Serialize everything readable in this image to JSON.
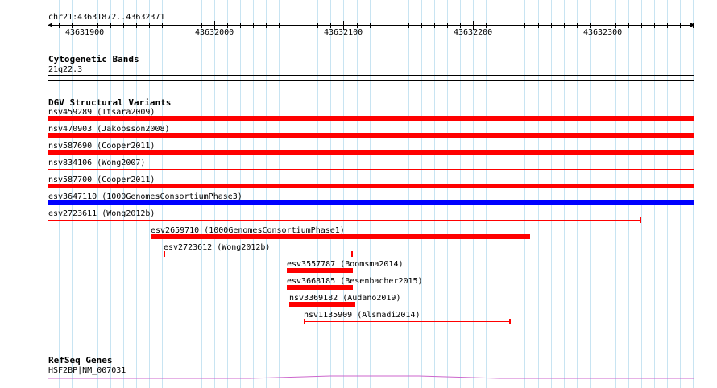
{
  "ruler": {
    "region": "chr21:43631872..43632371",
    "start": 43631872,
    "end": 43632371,
    "tick_labels": [
      "43631900",
      "43632000",
      "43632100",
      "43632200",
      "43632300"
    ]
  },
  "cytoband": {
    "title": "Cytogenetic Bands",
    "band": "21q22.3"
  },
  "dgv": {
    "title": "DGV Structural Variants",
    "variants": [
      {
        "label": "nsv459289 (Itsara2009)",
        "start": 43631872,
        "end": 43632371,
        "color": "#ff0000",
        "style": "thick"
      },
      {
        "label": "nsv470903 (Jakobsson2008)",
        "start": 43631872,
        "end": 43632371,
        "color": "#ff0000",
        "style": "thick"
      },
      {
        "label": "nsv587690 (Cooper2011)",
        "start": 43631872,
        "end": 43632371,
        "color": "#ff0000",
        "style": "thick"
      },
      {
        "label": "nsv834106 (Wong2007)",
        "start": 43631872,
        "end": 43632371,
        "color": "#ff0000",
        "style": "thin"
      },
      {
        "label": "nsv587700 (Cooper2011)",
        "start": 43631872,
        "end": 43632371,
        "color": "#ff0000",
        "style": "thick"
      },
      {
        "label": "esv3647110 (1000GenomesConsortiumPhase3)",
        "start": 43631872,
        "end": 43632371,
        "color": "#0000ff",
        "style": "thick"
      },
      {
        "label": "esv2723611 (Wong2012b)",
        "start": 43631872,
        "end": 43632330,
        "color": "#ff0000",
        "style": "thin"
      },
      {
        "label": "esv2659710 (1000GenomesConsortiumPhase1)",
        "start": 43631951,
        "end": 43632244,
        "color": "#ff0000",
        "style": "thick"
      },
      {
        "label": "esv2723612 (Wong2012b)",
        "start": 43631961,
        "end": 43632107,
        "color": "#ff0000",
        "style": "thin"
      },
      {
        "label": "esv3557787 (Boomsma2014)",
        "start": 43632056,
        "end": 43632107,
        "color": "#ff0000",
        "style": "thick"
      },
      {
        "label": "esv3668185 (Besenbacher2015)",
        "start": 43632056,
        "end": 43632107,
        "color": "#ff0000",
        "style": "thick"
      },
      {
        "label": "nsv3369182 (Audano2019)",
        "start": 43632058,
        "end": 43632109,
        "color": "#ff0000",
        "style": "thick"
      },
      {
        "label": "nsv1135909 (Alsmadi2014)",
        "start": 43632069,
        "end": 43632229,
        "color": "#ff0000",
        "style": "thin"
      }
    ]
  },
  "refseq": {
    "title": "RefSeq Genes",
    "gene_label": "HSF2BP|NM_007031",
    "color": "#cc66cc"
  }
}
